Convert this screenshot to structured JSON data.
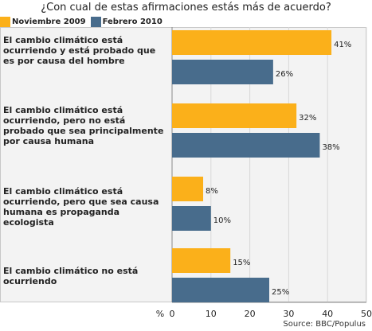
{
  "title": "¿Con cual de estas afirmaciones estás más de acuerdo?",
  "source": "Source: BBC/Populus",
  "legend": [
    {
      "label": "Noviembre 2009",
      "color": "#fbb01a"
    },
    {
      "label": "Febrero 2010",
      "color": "#486c8c"
    }
  ],
  "chart_data": {
    "type": "bar",
    "orientation": "horizontal",
    "categories": [
      "El cambio climático está ocurriendo y está probado que es por causa del hombre",
      "El cambio climático está ocurriendo, pero no está probado que sea principalmente por causa humana",
      "El cambio climático está ocurriendo, pero que sea causa humana es propaganda ecologista",
      "El cambio climático no está ocurriendo"
    ],
    "series": [
      {
        "name": "Noviembre 2009",
        "values": [
          41,
          32,
          8,
          15
        ],
        "color": "#fbb01a"
      },
      {
        "name": "Febrero 2010",
        "values": [
          26,
          38,
          10,
          25
        ],
        "color": "#486c8c"
      }
    ],
    "value_labels": [
      [
        "41%",
        "32%",
        "8%",
        "15%"
      ],
      [
        "26%",
        "38%",
        "10%",
        "25%"
      ]
    ],
    "xlabel": "%",
    "xlim": [
      0,
      50
    ],
    "xticks": [
      0,
      10,
      20,
      30,
      40,
      50
    ],
    "grid": true
  }
}
